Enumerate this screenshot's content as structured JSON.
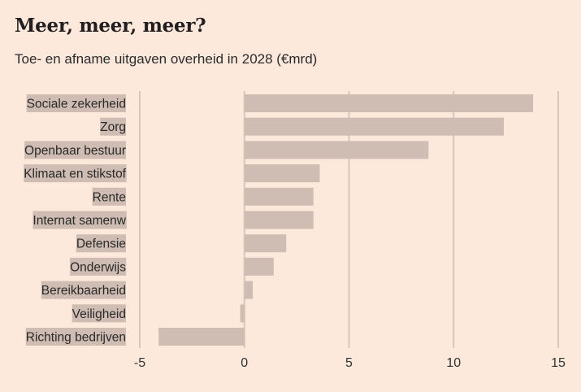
{
  "title": "Meer, meer, meer?",
  "subtitle": "Toe- en afname uitgaven overheid in 2028 (€mrd)",
  "chart_data": {
    "type": "bar",
    "orientation": "horizontal",
    "title": "Meer, meer, meer?",
    "subtitle": "Toe- en afname uitgaven overheid in 2028 (€mrd)",
    "xlabel": "",
    "ylabel": "",
    "xlim": [
      -5,
      15
    ],
    "xticks": [
      -5,
      0,
      5,
      10,
      15
    ],
    "grid": true,
    "bar_color": "#cfbcb2",
    "categories": [
      "Sociale zekerheid",
      "Zorg",
      "Openbaar bestuur",
      "Klimaat en stikstof",
      "Rente",
      "Internat samenw",
      "Defensie",
      "Onderwijs",
      "Bereikbaarheid",
      "Veiligheid",
      "Richting bedrijven"
    ],
    "values": [
      13.8,
      12.4,
      8.8,
      3.6,
      3.3,
      3.3,
      2.0,
      1.4,
      0.4,
      -0.2,
      -4.1
    ]
  }
}
